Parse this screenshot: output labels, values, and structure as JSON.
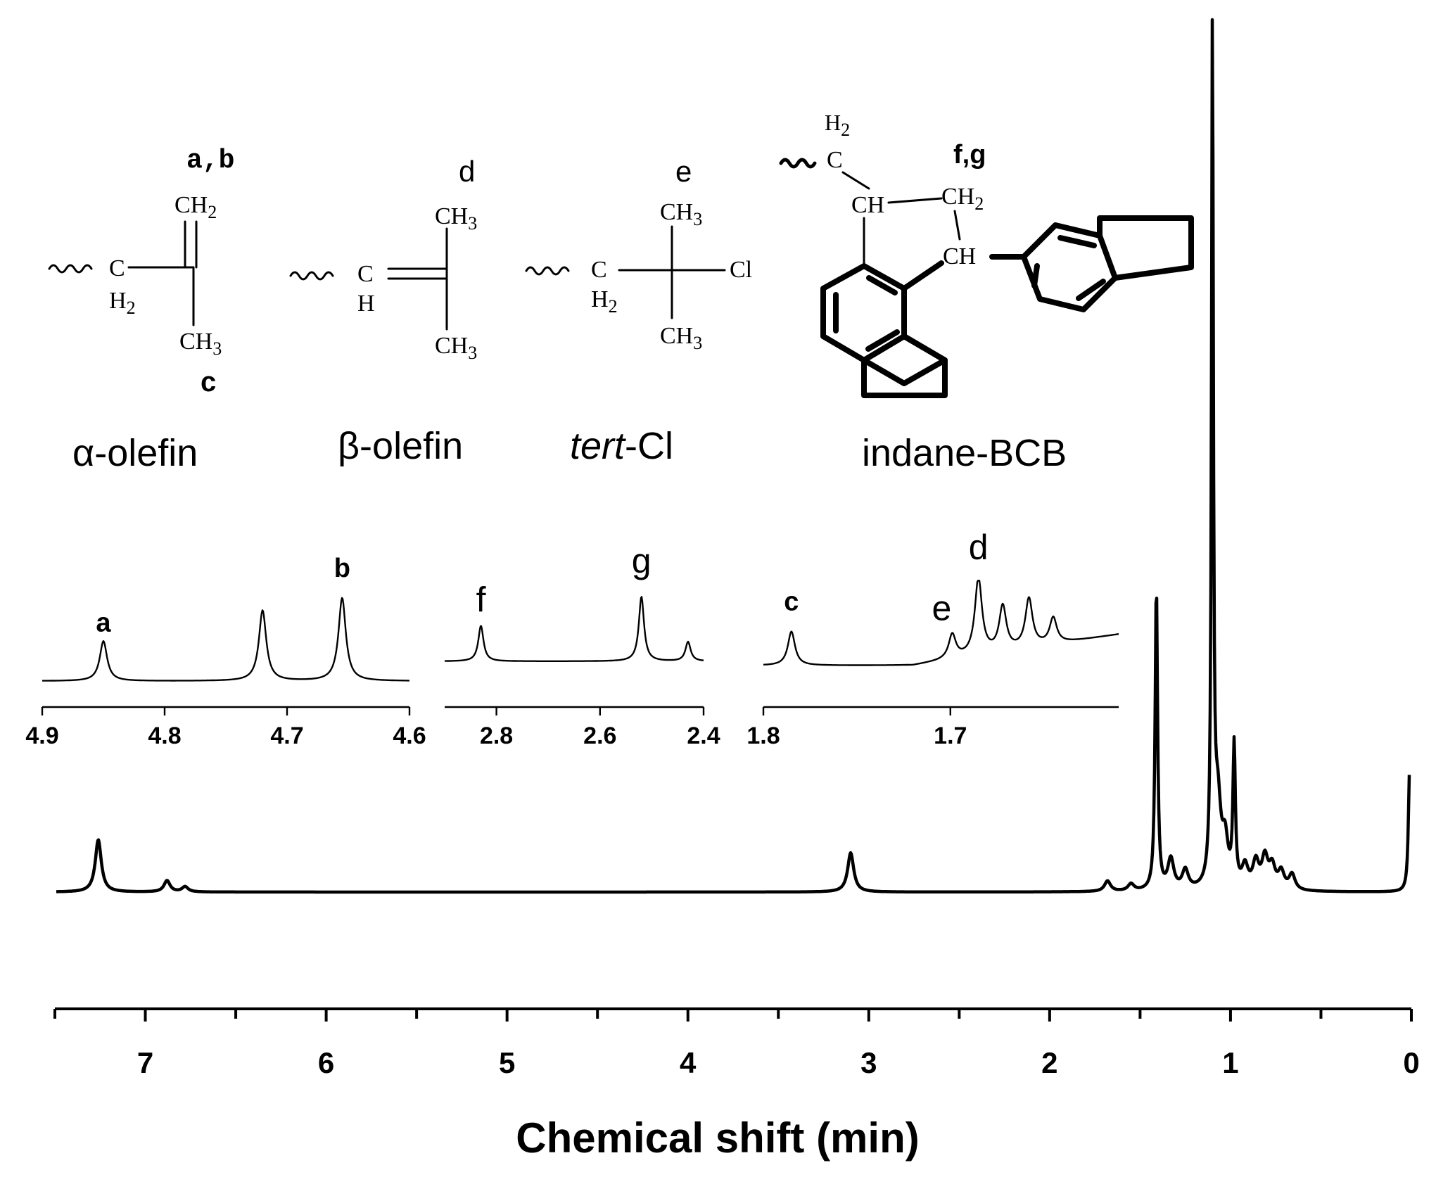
{
  "chart_data": {
    "type": "line",
    "xlabel": "Chemical shift (min)",
    "xlim": [
      7.5,
      0
    ],
    "x_ticks": [
      "7",
      "6",
      "5",
      "4",
      "3",
      "2",
      "1",
      "0"
    ],
    "peaks": [
      {
        "x": 7.26,
        "h": 0.06
      },
      {
        "x": 6.88,
        "h": 0.013
      },
      {
        "x": 6.78,
        "h": 0.006
      },
      {
        "x": 3.1,
        "h": 0.045
      },
      {
        "x": 1.68,
        "h": 0.012
      },
      {
        "x": 1.55,
        "h": 0.008
      },
      {
        "x": 1.41,
        "h": 0.35
      },
      {
        "x": 1.33,
        "h": 0.035
      },
      {
        "x": 1.25,
        "h": 0.022
      },
      {
        "x": 1.1,
        "h": 1.0
      },
      {
        "x": 1.07,
        "h": 0.09
      },
      {
        "x": 1.03,
        "h": 0.05
      },
      {
        "x": 0.98,
        "h": 0.16
      },
      {
        "x": 0.92,
        "h": 0.025
      },
      {
        "x": 0.86,
        "h": 0.03
      },
      {
        "x": 0.81,
        "h": 0.035
      },
      {
        "x": 0.77,
        "h": 0.025
      },
      {
        "x": 0.72,
        "h": 0.02
      },
      {
        "x": 0.66,
        "h": 0.018
      },
      {
        "x": 0.01,
        "h": 0.14
      }
    ],
    "insets": [
      {
        "x_ticks": [
          "4.9",
          "4.8",
          "4.7",
          "4.6"
        ],
        "xlim": [
          4.9,
          4.6
        ],
        "peaks": [
          {
            "x": 4.85,
            "h": 0.48,
            "label": "a"
          },
          {
            "x": 4.72,
            "h": 0.85
          },
          {
            "x": 4.655,
            "h": 1.0,
            "label": "b"
          }
        ]
      },
      {
        "x_ticks": [
          "2.8",
          "2.6",
          "2.4"
        ],
        "xlim": [
          2.9,
          2.4
        ],
        "peaks": [
          {
            "x": 2.83,
            "h": 0.55,
            "label": "f"
          },
          {
            "x": 2.52,
            "h": 1.0,
            "label": "g"
          },
          {
            "x": 2.43,
            "h": 0.3
          }
        ]
      },
      {
        "x_ticks": [
          "1.8",
          "1.7"
        ],
        "xlim": [
          1.8,
          1.61
        ],
        "peaks": [
          {
            "x": 1.785,
            "h": 0.42,
            "label": "c"
          },
          {
            "x": 1.699,
            "h": 0.3,
            "label": "e"
          },
          {
            "x": 1.685,
            "h": 0.95,
            "label": "d"
          },
          {
            "x": 1.672,
            "h": 0.55
          },
          {
            "x": 1.658,
            "h": 0.6
          },
          {
            "x": 1.645,
            "h": 0.32
          }
        ]
      }
    ]
  },
  "structures": {
    "alpha": {
      "name": "α-olefin",
      "label_top": "a,b",
      "ch2": "CH2",
      "c": "C",
      "h2": "H2",
      "ch3": "CH3",
      "label_bottom": "c"
    },
    "beta": {
      "name": "β-olefin",
      "label_top": "d",
      "ch3_top": "CH3",
      "c": "C",
      "h": "H",
      "ch3_bottom": "CH3"
    },
    "tert": {
      "name_italic": "tert",
      "name_rest": "-Cl",
      "label_top": "e",
      "ch3_top": "CH3",
      "c": "C",
      "h2": "H2",
      "cl": "Cl",
      "ch3_bottom": "CH3"
    },
    "indane": {
      "name": "indane-BCB",
      "label": "f,g",
      "h2": "H2",
      "c": "C",
      "ch_left": "CH",
      "ch2": "CH2",
      "ch_right": "CH"
    }
  }
}
